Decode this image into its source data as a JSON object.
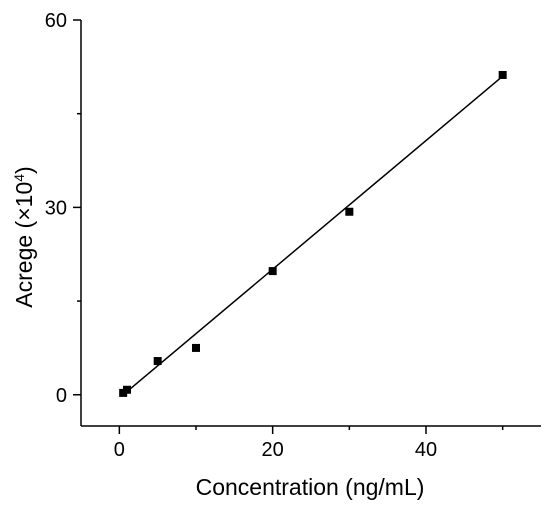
{
  "chart_data": {
    "type": "scatter",
    "title": "",
    "xlabel": "Concentration (ng/mL)",
    "ylabel_text": "Acrege (×10",
    "ylabel_exponent": "4",
    "ylabel_close": ")",
    "xlim": [
      -5,
      55
    ],
    "ylim": [
      -5,
      60
    ],
    "xticks": [
      0,
      20,
      40
    ],
    "xtick_labels": [
      "0",
      "20",
      "40"
    ],
    "yticks": [
      0,
      30,
      60
    ],
    "ytick_labels": [
      "0",
      "30",
      "60"
    ],
    "grid": false,
    "legend": "none",
    "series": [
      {
        "x": [
          0.5,
          1,
          5,
          10,
          20,
          30,
          50
        ],
        "y": [
          0.3,
          0.8,
          5.4,
          7.5,
          19.8,
          29.3,
          51.2
        ]
      }
    ],
    "fit_line": {
      "x": [
        0.5,
        50
      ],
      "y": [
        0.0,
        51.0
      ]
    },
    "colors": {
      "marker": "#000000",
      "line": "#000000",
      "axis": "#000000"
    }
  }
}
